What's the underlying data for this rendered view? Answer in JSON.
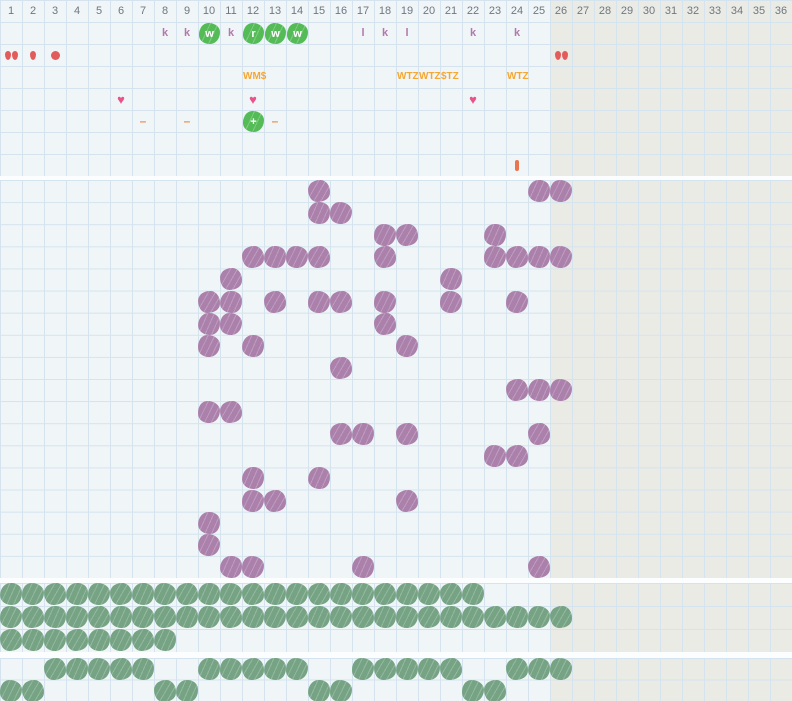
{
  "colors": {
    "bg_light": "#f0f6f8",
    "bg_gray": "#ebebe6",
    "grid_line": "#d4e3ee",
    "header_text": "#6e7780",
    "letter_purple": "#b279ad",
    "green_bright": "#54bb57",
    "red": "#e25c5c",
    "heart": "#e8548a",
    "dash_orange": "#ef8e4f",
    "amber_text": "#f5a733",
    "bar_orange": "#e8764e",
    "purple_blob": "#ab80ab",
    "green_blob": "#76a384"
  },
  "glyphs": {
    "heart": "♥",
    "dash": "–",
    "plus": "+"
  },
  "header": {
    "columns": [
      "1",
      "2",
      "3",
      "4",
      "5",
      "6",
      "7",
      "8",
      "9",
      "10",
      "11",
      "12",
      "13",
      "14",
      "15",
      "16",
      "17",
      "18",
      "19",
      "20",
      "21",
      "22",
      "23",
      "24",
      "25",
      "26",
      "27",
      "28",
      "29",
      "30",
      "31",
      "32",
      "33",
      "34",
      "35",
      "36"
    ]
  },
  "top_section": {
    "marks": [
      {
        "row": 1,
        "col": 8,
        "kind": "letter",
        "label": "k"
      },
      {
        "row": 1,
        "col": 9,
        "kind": "letter",
        "label": "k"
      },
      {
        "row": 1,
        "col": 10,
        "kind": "green-letter",
        "label": "w"
      },
      {
        "row": 1,
        "col": 11,
        "kind": "letter",
        "label": "k"
      },
      {
        "row": 1,
        "col": 12,
        "kind": "green-letter",
        "label": "r"
      },
      {
        "row": 1,
        "col": 13,
        "kind": "green-letter",
        "label": "w"
      },
      {
        "row": 1,
        "col": 14,
        "kind": "green-letter",
        "label": "w"
      },
      {
        "row": 1,
        "col": 17,
        "kind": "letter",
        "label": "l"
      },
      {
        "row": 1,
        "col": 18,
        "kind": "letter",
        "label": "k"
      },
      {
        "row": 1,
        "col": 19,
        "kind": "letter",
        "label": "l"
      },
      {
        "row": 1,
        "col": 22,
        "kind": "letter",
        "label": "k"
      },
      {
        "row": 1,
        "col": 24,
        "kind": "letter",
        "label": "k"
      },
      {
        "row": 2,
        "col": 1,
        "kind": "droplet-double"
      },
      {
        "row": 2,
        "col": 2,
        "kind": "droplet"
      },
      {
        "row": 2,
        "col": 3,
        "kind": "dot"
      },
      {
        "row": 2,
        "col": 26,
        "kind": "droplet-double"
      },
      {
        "row": 3,
        "col": 12,
        "kind": "text",
        "label": "WM$"
      },
      {
        "row": 3,
        "col": 19,
        "kind": "text",
        "label": "WTZ"
      },
      {
        "row": 3,
        "col": 20,
        "kind": "text",
        "label": "WTZ"
      },
      {
        "row": 3,
        "col": 21,
        "kind": "text",
        "label": "$TZ"
      },
      {
        "row": 3,
        "col": 24,
        "kind": "text",
        "label": "WTZ"
      },
      {
        "row": 4,
        "col": 6,
        "kind": "heart"
      },
      {
        "row": 4,
        "col": 12,
        "kind": "heart"
      },
      {
        "row": 4,
        "col": 22,
        "kind": "heart"
      },
      {
        "row": 5,
        "col": 7,
        "kind": "dash"
      },
      {
        "row": 5,
        "col": 9,
        "kind": "dash"
      },
      {
        "row": 5,
        "col": 12,
        "kind": "plus"
      },
      {
        "row": 5,
        "col": 13,
        "kind": "dash"
      },
      {
        "row": 7,
        "col": 24,
        "kind": "bar"
      }
    ]
  },
  "main_section": {
    "rows": [
      {
        "row": 1,
        "cols": [
          15,
          25,
          26
        ]
      },
      {
        "row": 2,
        "cols": [
          15,
          16
        ]
      },
      {
        "row": 3,
        "cols": [
          18,
          19,
          23
        ]
      },
      {
        "row": 4,
        "cols": [
          12,
          13,
          14,
          15,
          18,
          23,
          24,
          25,
          26
        ]
      },
      {
        "row": 5,
        "cols": [
          11,
          21
        ]
      },
      {
        "row": 6,
        "cols": [
          10,
          11,
          13,
          15,
          16,
          18,
          21,
          24
        ]
      },
      {
        "row": 7,
        "cols": [
          10,
          11,
          18
        ]
      },
      {
        "row": 8,
        "cols": [
          10,
          12,
          19
        ]
      },
      {
        "row": 9,
        "cols": [
          16
        ]
      },
      {
        "row": 10,
        "cols": [
          24,
          25,
          26
        ]
      },
      {
        "row": 11,
        "cols": [
          10,
          11
        ]
      },
      {
        "row": 12,
        "cols": [
          16,
          17,
          19,
          25
        ]
      },
      {
        "row": 13,
        "cols": [
          23,
          24
        ]
      },
      {
        "row": 14,
        "cols": [
          12,
          15
        ]
      },
      {
        "row": 15,
        "cols": [
          12,
          13,
          19
        ]
      },
      {
        "row": 16,
        "cols": [
          10
        ]
      },
      {
        "row": 17,
        "cols": [
          10
        ]
      },
      {
        "row": 18,
        "cols": [
          11,
          12,
          17,
          25
        ]
      }
    ]
  },
  "green_section_1": {
    "rows": [
      {
        "row": 1,
        "cols": [
          1,
          2,
          3,
          4,
          5,
          6,
          7,
          8,
          9,
          10,
          11,
          12,
          13,
          14,
          15,
          16,
          17,
          18,
          19,
          20,
          21,
          22
        ]
      },
      {
        "row": 2,
        "cols": [
          1,
          2,
          3,
          4,
          5,
          6,
          7,
          8,
          9,
          10,
          11,
          12,
          13,
          14,
          15,
          16,
          17,
          18,
          19,
          20,
          21,
          22,
          23,
          24,
          25,
          26
        ]
      },
      {
        "row": 3,
        "cols": [
          1,
          2,
          3,
          4,
          5,
          6,
          7,
          8
        ]
      }
    ]
  },
  "green_section_2": {
    "rows": [
      {
        "row": 1,
        "cols": [
          3,
          4,
          5,
          6,
          7,
          10,
          11,
          12,
          13,
          14,
          17,
          18,
          19,
          20,
          21,
          24,
          25,
          26
        ]
      },
      {
        "row": 2,
        "cols": [
          1,
          2,
          8,
          9,
          15,
          16,
          22,
          23
        ]
      }
    ]
  }
}
